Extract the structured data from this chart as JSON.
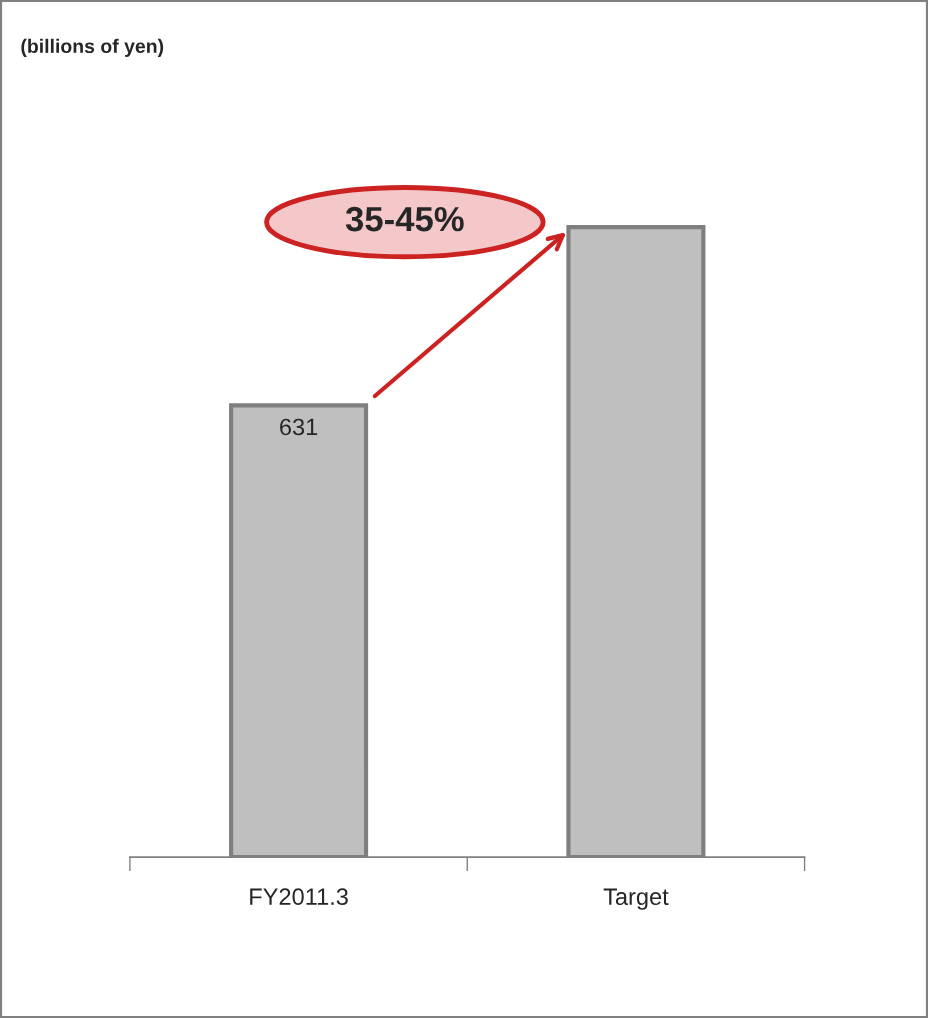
{
  "chart_data": {
    "type": "bar",
    "title": "(billions of yen)",
    "categories": [
      "FY2011.3",
      "Target"
    ],
    "values": [
      631,
      880
    ],
    "tick_labels": "x",
    "value_labels": [
      "631",
      null
    ],
    "colors": [
      "#bfbfbf",
      "#bfbfbf"
    ],
    "annotations": [
      "35-45%"
    ]
  }
}
